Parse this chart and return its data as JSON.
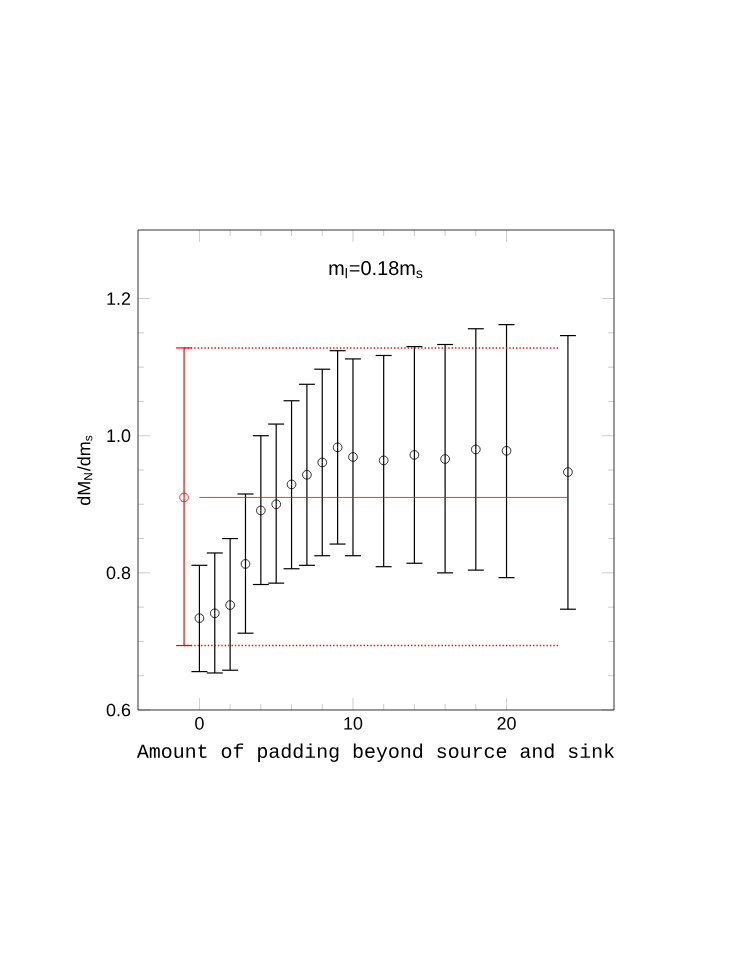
{
  "chart_data": {
    "type": "scatter",
    "title": "m$_{l}$=0.18m$_{s}$",
    "xlabel": "Amount of padding beyond source and sink",
    "ylabel": "dM$_{N}$/dm$_{s}$",
    "xlim": [
      -4,
      27
    ],
    "xticks": [
      0,
      10,
      20
    ],
    "ylim": [
      0.6,
      1.3
    ],
    "yticks": [
      {
        "value": 0.6,
        "label": "0.6"
      },
      {
        "value": 0.8,
        "label": "0.8"
      },
      {
        "value": 1.0,
        "label": "1.0"
      },
      {
        "value": 1.2,
        "label": "1.2"
      }
    ],
    "marker": "circle",
    "series": [
      {
        "type": "scatter",
        "color": "#000000",
        "x": [
          0,
          1,
          2,
          3,
          4,
          5,
          6,
          7,
          8,
          9,
          10,
          12,
          14,
          16,
          18,
          20,
          24
        ],
        "values": [
          0.734,
          0.741,
          0.753,
          0.813,
          0.891,
          0.9,
          0.929,
          0.943,
          0.961,
          0.983,
          0.969,
          0.964,
          0.972,
          0.966,
          0.98,
          0.978,
          0.947
        ],
        "errors": [
          [
            0.656,
            0.811
          ],
          [
            0.654,
            0.829
          ],
          [
            0.658,
            0.85
          ],
          [
            0.712,
            0.915
          ],
          [
            0.783,
            1.0
          ],
          [
            0.785,
            1.017
          ],
          [
            0.806,
            1.051
          ],
          [
            0.811,
            1.075
          ],
          [
            0.825,
            1.097
          ],
          [
            0.842,
            1.124
          ],
          [
            0.825,
            1.112
          ],
          [
            0.809,
            1.117
          ],
          [
            0.814,
            1.13
          ],
          [
            0.8,
            1.133
          ],
          [
            0.804,
            1.156
          ],
          [
            0.793,
            1.162
          ],
          [
            0.747,
            1.146
          ]
        ]
      },
      {
        "type": "scatter",
        "color": "#ff0000",
        "x": [
          -1
        ],
        "values": [
          0.91
        ],
        "errors": [
          [
            0.694,
            1.128
          ]
        ]
      },
      {
        "type": "line",
        "color": "#ff0000",
        "marker": "none",
        "line_style": "solid",
        "x": [
          0,
          24
        ],
        "values": [
          0.91,
          0.91
        ]
      },
      {
        "type": "line",
        "color": "#ff0000",
        "marker": "none",
        "line_style": "dotted",
        "x": [
          -1,
          23.4
        ],
        "values": [
          1.128,
          1.128
        ]
      },
      {
        "type": "line",
        "color": "#ff0000",
        "marker": "none",
        "line_style": "dotted",
        "x": [
          -1,
          23.4
        ],
        "values": [
          0.694,
          0.694
        ]
      }
    ]
  }
}
